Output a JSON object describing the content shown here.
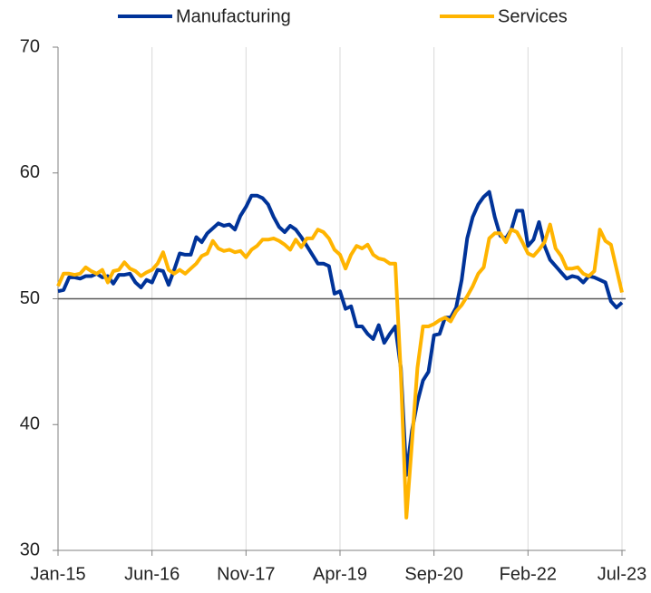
{
  "chart_data": {
    "type": "line",
    "categories": [
      "Jan-15",
      null,
      null,
      null,
      null,
      null,
      null,
      null,
      null,
      null,
      null,
      null,
      null,
      null,
      null,
      null,
      null,
      "Jun-16",
      null,
      null,
      null,
      null,
      null,
      null,
      null,
      null,
      null,
      null,
      null,
      null,
      null,
      null,
      null,
      null,
      "Nov-17",
      null,
      null,
      null,
      null,
      null,
      null,
      null,
      null,
      null,
      null,
      null,
      null,
      null,
      null,
      null,
      null,
      "Apr-19",
      null,
      null,
      null,
      null,
      null,
      null,
      null,
      null,
      null,
      null,
      null,
      null,
      null,
      null,
      null,
      null,
      "Sep-20",
      null,
      null,
      null,
      null,
      null,
      null,
      null,
      null,
      null,
      null,
      null,
      null,
      null,
      null,
      null,
      null,
      "Feb-22",
      null,
      null,
      null,
      null,
      null,
      null,
      null,
      null,
      null,
      null,
      null,
      null,
      null,
      null,
      null,
      null,
      "Jul-23"
    ],
    "series": [
      {
        "name": "Manufacturing",
        "color": "#003399",
        "values": [
          50.6,
          50.7,
          51.7,
          51.7,
          51.6,
          51.8,
          51.8,
          52.0,
          51.7,
          51.8,
          51.2,
          51.9,
          51.9,
          52.0,
          51.3,
          50.9,
          51.5,
          51.3,
          52.3,
          52.2,
          51.1,
          52.3,
          53.6,
          53.5,
          53.5,
          54.9,
          54.5,
          55.2,
          55.6,
          56.0,
          55.8,
          55.9,
          55.5,
          56.6,
          57.3,
          58.2,
          58.2,
          58.0,
          57.5,
          56.5,
          55.7,
          55.3,
          55.8,
          55.5,
          54.9,
          54.2,
          53.5,
          52.8,
          52.8,
          52.6,
          50.4,
          50.6,
          49.2,
          49.4,
          47.8,
          47.8,
          47.2,
          46.8,
          47.9,
          46.5,
          47.2,
          47.8,
          44.5,
          36.0,
          39.5,
          41.8,
          43.5,
          44.2,
          47.1,
          47.2,
          48.5,
          48.5,
          49.3,
          51.5,
          54.8,
          56.5,
          57.5,
          58.1,
          58.5,
          56.5,
          55.0,
          54.8,
          55.5,
          57.0,
          57.0,
          54.2,
          54.7,
          56.1,
          54.2,
          53.1,
          52.6,
          52.1,
          51.6,
          51.8,
          51.7,
          51.3,
          51.8,
          51.7,
          51.5,
          51.3,
          49.8,
          49.3,
          49.7
        ]
      },
      {
        "name": "Services",
        "color": "#ffb400",
        "values": [
          51.0,
          52.0,
          52.0,
          51.9,
          52.0,
          52.5,
          52.2,
          52.0,
          52.3,
          51.3,
          52.2,
          52.3,
          52.9,
          52.4,
          52.2,
          51.8,
          52.1,
          52.3,
          52.8,
          53.7,
          52.3,
          52.0,
          52.3,
          52.0,
          52.4,
          52.8,
          53.4,
          53.6,
          54.6,
          54.0,
          53.8,
          53.9,
          53.7,
          53.8,
          53.3,
          53.9,
          54.2,
          54.7,
          54.7,
          54.8,
          54.6,
          54.3,
          53.9,
          54.7,
          54.1,
          54.8,
          54.8,
          55.5,
          55.3,
          54.8,
          53.9,
          53.5,
          52.4,
          53.5,
          54.2,
          54.0,
          54.3,
          53.5,
          53.2,
          53.1,
          52.8,
          52.8,
          44.0,
          32.6,
          38.5,
          44.5,
          47.8,
          47.8,
          48.0,
          48.3,
          48.5,
          48.2,
          49.0,
          49.5,
          50.2,
          51.0,
          52.0,
          52.5,
          54.8,
          55.2,
          55.2,
          54.5,
          55.5,
          55.3,
          54.5,
          53.6,
          53.4,
          53.9,
          54.5,
          55.9,
          54.0,
          53.4,
          52.4,
          52.4,
          52.5,
          52.0,
          51.8,
          52.2,
          55.5,
          54.6,
          54.3,
          52.4,
          50.5
        ]
      }
    ],
    "ylim": [
      30,
      70
    ],
    "yticks": [
      30,
      40,
      50,
      60,
      70
    ],
    "hline": 50,
    "grid": true,
    "legend": "top"
  }
}
